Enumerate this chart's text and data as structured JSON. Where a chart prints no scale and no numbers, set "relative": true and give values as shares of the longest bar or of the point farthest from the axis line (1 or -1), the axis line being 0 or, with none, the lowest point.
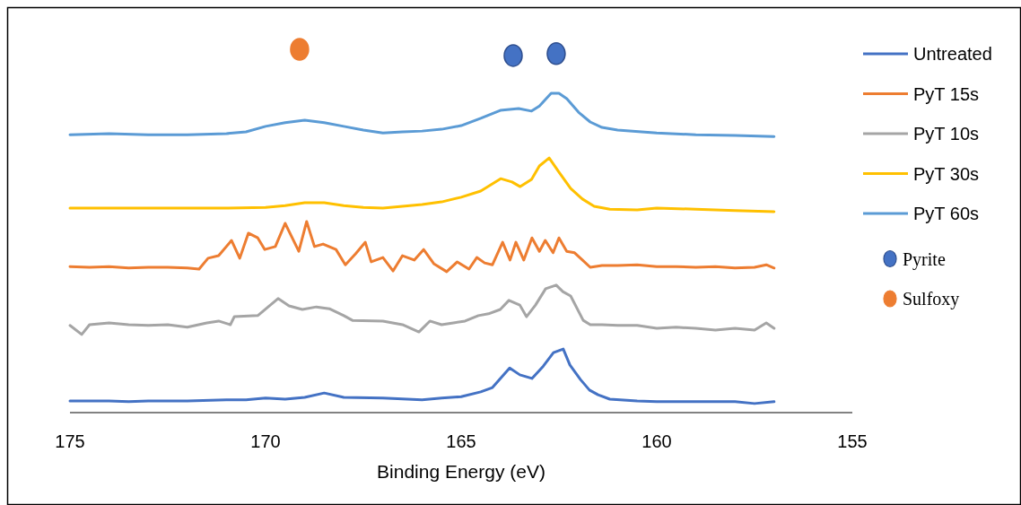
{
  "chart_data": {
    "type": "line",
    "relative": true,
    "xlabel": "Binding Energy (eV)",
    "xlim": [
      175,
      155
    ],
    "xticks": [
      175,
      170,
      165,
      160,
      155
    ],
    "grid": false,
    "legend": "right",
    "line_style": "solid",
    "series": [
      {
        "name": "Untreated",
        "color": "#4472c4",
        "x": [
          175,
          174,
          173.5,
          173,
          172,
          171,
          170.5,
          170,
          169.5,
          169,
          168.5,
          168,
          167,
          166,
          165.5,
          165,
          164.5,
          164.2,
          163.76,
          163.5,
          163.19,
          162.9,
          162.64,
          162.39,
          162.22,
          161.95,
          161.72,
          161.5,
          161.2,
          160.5,
          160,
          159,
          158,
          157.5,
          157
        ],
        "values": [
          0.032,
          0.032,
          0.03,
          0.032,
          0.032,
          0.035,
          0.035,
          0.04,
          0.037,
          0.042,
          0.054,
          0.042,
          0.04,
          0.035,
          0.04,
          0.044,
          0.057,
          0.069,
          0.123,
          0.104,
          0.094,
          0.128,
          0.165,
          0.175,
          0.131,
          0.091,
          0.062,
          0.049,
          0.037,
          0.032,
          0.03,
          0.03,
          0.03,
          0.025,
          0.03
        ]
      },
      {
        "name": "PyT 15s",
        "color": "#ed7d31",
        "x": [
          175,
          174.5,
          174,
          173.5,
          173,
          172.5,
          172,
          171.7,
          171.47,
          171.2,
          170.87,
          170.66,
          170.44,
          170.2,
          170.02,
          169.75,
          169.5,
          169.15,
          168.95,
          168.75,
          168.53,
          168.2,
          167.96,
          167.7,
          167.45,
          167.3,
          167,
          166.74,
          166.5,
          166.2,
          165.96,
          165.7,
          165.37,
          165.1,
          164.8,
          164.6,
          164.4,
          164.2,
          163.94,
          163.75,
          163.6,
          163.4,
          163.19,
          163.0,
          162.85,
          162.65,
          162.5,
          162.3,
          162.1,
          161.9,
          161.7,
          161.4,
          161,
          160.5,
          160,
          159.5,
          159,
          158.5,
          158,
          157.5,
          157.2,
          157
        ],
        "values": [
          0.402,
          0.4,
          0.402,
          0.398,
          0.4,
          0.4,
          0.398,
          0.395,
          0.425,
          0.432,
          0.474,
          0.425,
          0.494,
          0.481,
          0.449,
          0.457,
          0.521,
          0.444,
          0.526,
          0.457,
          0.464,
          0.449,
          0.407,
          0.437,
          0.469,
          0.415,
          0.427,
          0.39,
          0.432,
          0.42,
          0.449,
          0.41,
          0.388,
          0.415,
          0.395,
          0.427,
          0.412,
          0.407,
          0.469,
          0.42,
          0.469,
          0.42,
          0.481,
          0.444,
          0.474,
          0.44,
          0.481,
          0.444,
          0.44,
          0.42,
          0.4,
          0.405,
          0.405,
          0.407,
          0.402,
          0.402,
          0.4,
          0.402,
          0.398,
          0.4,
          0.407,
          0.398
        ]
      },
      {
        "name": "PyT 10s",
        "color": "#a5a5a5",
        "x": [
          175,
          174.7,
          174.5,
          174,
          173.5,
          173,
          172.5,
          172,
          171.5,
          171.2,
          170.9,
          170.8,
          170.2,
          169.68,
          169.4,
          169.06,
          168.7,
          168.37,
          168,
          167.78,
          167,
          166.5,
          166.08,
          165.8,
          165.5,
          165.2,
          164.9,
          164.56,
          164.3,
          164,
          163.78,
          163.5,
          163.33,
          163.1,
          162.84,
          162.57,
          162.4,
          162.2,
          161.88,
          161.7,
          161.4,
          161,
          160.5,
          160,
          159.5,
          159,
          158.5,
          158,
          157.5,
          157.2,
          157
        ],
        "values": [
          0.24,
          0.215,
          0.242,
          0.247,
          0.242,
          0.24,
          0.242,
          0.235,
          0.247,
          0.252,
          0.242,
          0.264,
          0.267,
          0.314,
          0.294,
          0.284,
          0.291,
          0.286,
          0.267,
          0.254,
          0.252,
          0.242,
          0.222,
          0.252,
          0.242,
          0.247,
          0.252,
          0.267,
          0.272,
          0.284,
          0.309,
          0.296,
          0.264,
          0.296,
          0.341,
          0.351,
          0.333,
          0.321,
          0.254,
          0.242,
          0.242,
          0.24,
          0.24,
          0.232,
          0.235,
          0.232,
          0.227,
          0.232,
          0.227,
          0.247,
          0.232
        ]
      },
      {
        "name": "PyT 30s",
        "color": "#ffc000",
        "x": [
          175,
          174,
          173,
          172,
          171,
          170,
          169.5,
          169,
          168.5,
          168,
          167.5,
          167,
          166.5,
          166,
          165.5,
          165,
          164.5,
          163.99,
          163.7,
          163.49,
          163.2,
          163,
          162.75,
          162.5,
          162.2,
          161.9,
          161.6,
          161.2,
          160.5,
          160,
          159,
          158,
          157
        ],
        "values": [
          0.563,
          0.563,
          0.563,
          0.563,
          0.563,
          0.565,
          0.57,
          0.578,
          0.578,
          0.57,
          0.565,
          0.563,
          0.568,
          0.573,
          0.58,
          0.593,
          0.61,
          0.644,
          0.635,
          0.622,
          0.642,
          0.679,
          0.701,
          0.662,
          0.617,
          0.588,
          0.568,
          0.56,
          0.558,
          0.563,
          0.56,
          0.556,
          0.553
        ]
      },
      {
        "name": "PyT 60s",
        "color": "#5b9bd5",
        "x": [
          175,
          174,
          173,
          172,
          171,
          170.5,
          170,
          169.5,
          169,
          168.5,
          168,
          167.5,
          167,
          166.5,
          166,
          165.5,
          165,
          164.5,
          164,
          163.53,
          163.2,
          163,
          162.7,
          162.5,
          162.3,
          162,
          161.7,
          161.4,
          161,
          160,
          159,
          158,
          157
        ],
        "values": [
          0.765,
          0.768,
          0.765,
          0.765,
          0.768,
          0.773,
          0.788,
          0.798,
          0.805,
          0.798,
          0.788,
          0.778,
          0.77,
          0.773,
          0.775,
          0.78,
          0.79,
          0.81,
          0.832,
          0.837,
          0.83,
          0.844,
          0.879,
          0.879,
          0.864,
          0.827,
          0.8,
          0.785,
          0.778,
          0.77,
          0.765,
          0.763,
          0.76
        ]
      },
      {
        "name": "Pyrite",
        "type": "scatter",
        "marker": "circle",
        "color": "#4472c4",
        "x": [
          163.67,
          162.57
        ],
        "values": [
          0.983,
          0.988
        ]
      },
      {
        "name": "Sulfoxy",
        "type": "scatter",
        "marker": "circle",
        "color": "#ed7d31",
        "x": [
          169.13
        ],
        "values": [
          1
        ]
      }
    ]
  }
}
